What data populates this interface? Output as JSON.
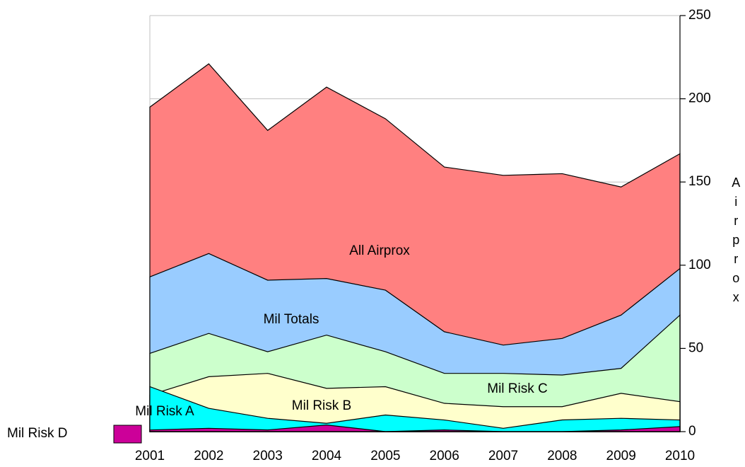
{
  "chart_data": {
    "type": "area",
    "categories": [
      "2001",
      "2002",
      "2003",
      "2004",
      "2005",
      "2006",
      "2007",
      "2008",
      "2009",
      "2010"
    ],
    "series": [
      {
        "name": "All Airprox",
        "color": "#ff8080",
        "values": [
          195,
          221,
          181,
          207,
          188,
          159,
          154,
          155,
          147,
          167
        ]
      },
      {
        "name": "Mil Totals",
        "color": "#99ccff",
        "values": [
          93,
          107,
          91,
          92,
          85,
          60,
          52,
          56,
          70,
          98
        ]
      },
      {
        "name": "Mil Risk C",
        "color": "#ccffcc",
        "values": [
          47,
          59,
          48,
          58,
          48,
          35,
          35,
          34,
          38,
          70
        ]
      },
      {
        "name": "Mil Risk B",
        "color": "#ffffcc",
        "values": [
          22,
          33,
          35,
          26,
          27,
          17,
          15,
          15,
          23,
          18
        ]
      },
      {
        "name": "Mil Risk A",
        "color": "#00ffff",
        "values": [
          27,
          14,
          8,
          5,
          10,
          7,
          2,
          7,
          8,
          7
        ]
      },
      {
        "name": "Mil Risk D",
        "color": "#cc0099",
        "values": [
          1,
          2,
          1,
          4,
          0,
          1,
          0,
          0,
          1,
          3
        ]
      }
    ],
    "y_label": "Airprox",
    "ylim": [
      0,
      250
    ],
    "yticks": [
      0,
      50,
      100,
      150,
      200,
      250
    ],
    "grid": true
  }
}
